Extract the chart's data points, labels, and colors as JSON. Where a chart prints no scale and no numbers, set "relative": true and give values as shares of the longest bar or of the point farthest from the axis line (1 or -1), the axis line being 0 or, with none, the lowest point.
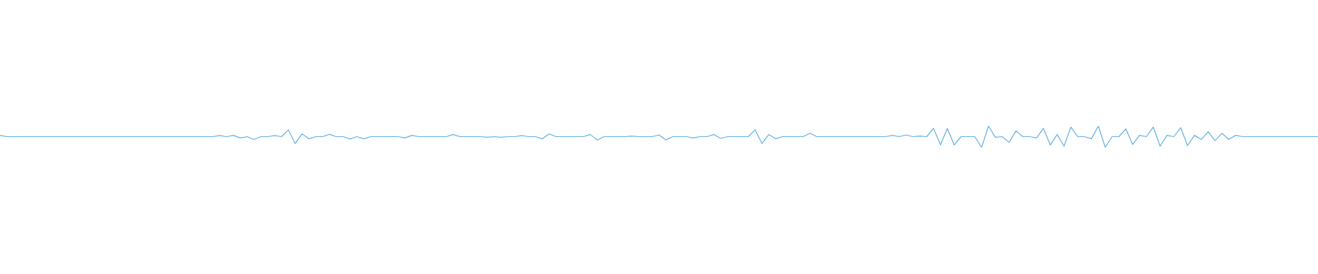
{
  "chart_data": {
    "type": "line",
    "relative": true,
    "grid": false,
    "legend": false,
    "marker": "none",
    "line_style": "solid",
    "categories": [
      null,
      null,
      null,
      null,
      null,
      null,
      null,
      null,
      null,
      null,
      null,
      null,
      null,
      null,
      null,
      null,
      null,
      null,
      null,
      null,
      null,
      null,
      null,
      null,
      null,
      null,
      null,
      null,
      null,
      null,
      null,
      null,
      null,
      null,
      null,
      null,
      null,
      null,
      null,
      null,
      null,
      null,
      null,
      null,
      null,
      null,
      null,
      null,
      null,
      null,
      null,
      null,
      null,
      null,
      null,
      null,
      null,
      null,
      null,
      null,
      null,
      null,
      null,
      null,
      null,
      null,
      null,
      null,
      null,
      null,
      null,
      null,
      null,
      null,
      null,
      null,
      null,
      null,
      null,
      null,
      null,
      null,
      null,
      null,
      null,
      null,
      null,
      null,
      null,
      null,
      null,
      null,
      null,
      null,
      null,
      null,
      null,
      null,
      null,
      null,
      null,
      null,
      null,
      null,
      null,
      null,
      null,
      null,
      null,
      null,
      null,
      null,
      null,
      null,
      null,
      null,
      null,
      null,
      null,
      null,
      null,
      null,
      null,
      null,
      null,
      null,
      null,
      null,
      null,
      null,
      null,
      null,
      null,
      null,
      null,
      null,
      null,
      null,
      null,
      null,
      null,
      null,
      null,
      null,
      null,
      null,
      null,
      null,
      null,
      null,
      null,
      null,
      null,
      null,
      null,
      null,
      null,
      null,
      null,
      null,
      null,
      null,
      null,
      null,
      null,
      null,
      null,
      null,
      null,
      null,
      null,
      null,
      null,
      null,
      null,
      null,
      null,
      null,
      null,
      null,
      null,
      null,
      null,
      null,
      null,
      null,
      null,
      null,
      null,
      null,
      null,
      null,
      null
    ],
    "series": [
      {
        "color": "#5dade2",
        "values": [
          0.56,
          0.5,
          0.5,
          0.5,
          0.5,
          0.5,
          0.5,
          0.5,
          0.5,
          0.5,
          0.5,
          0.5,
          0.5,
          0.5,
          0.5,
          0.5,
          0.5,
          0.5,
          0.5,
          0.5,
          0.5,
          0.5,
          0.5,
          0.5,
          0.5,
          0.5,
          0.5,
          0.5,
          0.5,
          0.5,
          0.5,
          0.5,
          0.55,
          0.5,
          0.56,
          0.44,
          0.5,
          0.37,
          0.5,
          0.5,
          0.55,
          0.5,
          0.82,
          0.18,
          0.63,
          0.4,
          0.5,
          0.5,
          0.61,
          0.5,
          0.5,
          0.39,
          0.5,
          0.4,
          0.5,
          0.5,
          0.5,
          0.5,
          0.5,
          0.44,
          0.56,
          0.5,
          0.5,
          0.5,
          0.5,
          0.5,
          0.6,
          0.5,
          0.5,
          0.5,
          0.5,
          0.47,
          0.5,
          0.47,
          0.5,
          0.5,
          0.55,
          0.5,
          0.5,
          0.4,
          0.63,
          0.5,
          0.5,
          0.5,
          0.5,
          0.5,
          0.6,
          0.34,
          0.5,
          0.5,
          0.5,
          0.5,
          0.53,
          0.5,
          0.5,
          0.5,
          0.58,
          0.35,
          0.5,
          0.5,
          0.5,
          0.44,
          0.5,
          0.5,
          0.6,
          0.42,
          0.5,
          0.5,
          0.5,
          0.5,
          0.82,
          0.18,
          0.6,
          0.4,
          0.5,
          0.5,
          0.5,
          0.5,
          0.66,
          0.5,
          0.5,
          0.5,
          0.5,
          0.5,
          0.5,
          0.5,
          0.5,
          0.5,
          0.5,
          0.5,
          0.56,
          0.5,
          0.58,
          0.5,
          0.53,
          0.5,
          0.89,
          0.11,
          0.89,
          0.11,
          0.5,
          0.5,
          0.5,
          0.0,
          1.0,
          0.47,
          0.5,
          0.23,
          0.77,
          0.5,
          0.5,
          0.44,
          0.89,
          0.11,
          0.6,
          0.05,
          0.95,
          0.5,
          0.5,
          0.4,
          1.0,
          0.0,
          0.5,
          0.5,
          0.87,
          0.13,
          0.56,
          0.5,
          0.95,
          0.05,
          0.56,
          0.5,
          0.92,
          0.08,
          0.56,
          0.37,
          0.73,
          0.31,
          0.66,
          0.37,
          0.56,
          0.5,
          0.5,
          0.5,
          0.5,
          0.5,
          0.5,
          0.5,
          0.5,
          0.5,
          0.5,
          0.5,
          0.5
        ]
      }
    ]
  }
}
